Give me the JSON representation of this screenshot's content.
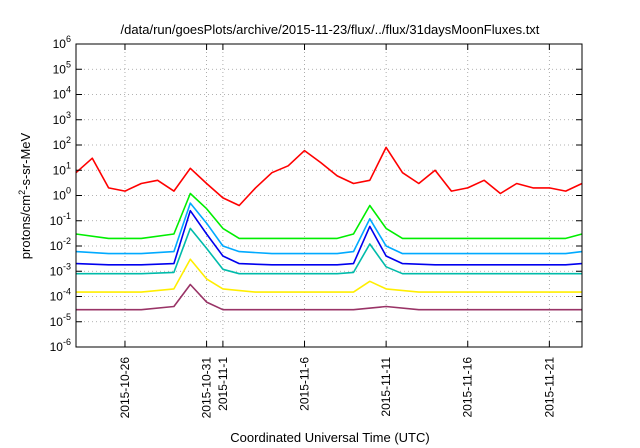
{
  "chart_data": {
    "type": "line",
    "title": "/data/run/goesPlots/archive/2015-11-23/flux/../flux/31daysMoonFluxes.txt",
    "xlabel": "Coordinated Universal Time (UTC)",
    "ylabel": "protons/cm2-s-sr-MeV",
    "yscale": "log",
    "ylim": [
      1e-06,
      1000000.0
    ],
    "xlim": [
      "2015-10-23",
      "2015-11-23"
    ],
    "grid": true,
    "legend": "none",
    "yticks": [
      {
        "value": 1e-06,
        "base": "10",
        "exp": "-6"
      },
      {
        "value": 1e-05,
        "base": "10",
        "exp": "-5"
      },
      {
        "value": 0.0001,
        "base": "10",
        "exp": "-4"
      },
      {
        "value": 0.001,
        "base": "10",
        "exp": "-3"
      },
      {
        "value": 0.01,
        "base": "10",
        "exp": "-2"
      },
      {
        "value": 0.1,
        "base": "10",
        "exp": "-1"
      },
      {
        "value": 1.0,
        "base": "10",
        "exp": "0"
      },
      {
        "value": 10.0,
        "base": "10",
        "exp": "1"
      },
      {
        "value": 100.0,
        "base": "10",
        "exp": "2"
      },
      {
        "value": 1000.0,
        "base": "10",
        "exp": "3"
      },
      {
        "value": 10000.0,
        "base": "10",
        "exp": "4"
      },
      {
        "value": 100000.0,
        "base": "10",
        "exp": "5"
      },
      {
        "value": 1000000.0,
        "base": "10",
        "exp": "6"
      }
    ],
    "xticks": [
      {
        "date": "2015-10-26",
        "label": "2015-10-26"
      },
      {
        "date": "2015-10-31",
        "label": "2015-10-31"
      },
      {
        "date": "2015-11-01",
        "label": "2015-11-1"
      },
      {
        "date": "2015-11-06",
        "label": "2015-11-6"
      },
      {
        "date": "2015-11-11",
        "label": "2015-11-11"
      },
      {
        "date": "2015-11-16",
        "label": "2015-11-16"
      },
      {
        "date": "2015-11-21",
        "label": "2015-11-21"
      }
    ],
    "series": [
      {
        "color": "#ff0000",
        "x": [
          "2015-10-23",
          "2015-10-24",
          "2015-10-25",
          "2015-10-26",
          "2015-10-27",
          "2015-10-28",
          "2015-10-29",
          "2015-10-30",
          "2015-10-31",
          "2015-11-01",
          "2015-11-02",
          "2015-11-03",
          "2015-11-04",
          "2015-11-05",
          "2015-11-06",
          "2015-11-07",
          "2015-11-08",
          "2015-11-09",
          "2015-11-10",
          "2015-11-11",
          "2015-11-12",
          "2015-11-13",
          "2015-11-14",
          "2015-11-15",
          "2015-11-16",
          "2015-11-17",
          "2015-11-18",
          "2015-11-19",
          "2015-11-20",
          "2015-11-21",
          "2015-11-22",
          "2015-11-23"
        ],
        "y": [
          8,
          30,
          2,
          1.5,
          3,
          4,
          1.5,
          12,
          3,
          0.8,
          0.4,
          2,
          8,
          15,
          60,
          20,
          6,
          3,
          4,
          80,
          8,
          3,
          10,
          1.5,
          2,
          4,
          1.2,
          3,
          2,
          2,
          1.5,
          3
        ]
      },
      {
        "color": "#00ee00",
        "x": [
          "2015-10-23",
          "2015-10-25",
          "2015-10-27",
          "2015-10-29",
          "2015-10-30",
          "2015-10-31",
          "2015-11-01",
          "2015-11-02",
          "2015-11-04",
          "2015-11-06",
          "2015-11-08",
          "2015-11-09",
          "2015-11-10",
          "2015-11-11",
          "2015-11-12",
          "2015-11-14",
          "2015-11-16",
          "2015-11-18",
          "2015-11-20",
          "2015-11-22",
          "2015-11-23"
        ],
        "y": [
          0.03,
          0.02,
          0.02,
          0.03,
          1.2,
          0.3,
          0.05,
          0.02,
          0.02,
          0.02,
          0.02,
          0.03,
          0.4,
          0.05,
          0.02,
          0.02,
          0.02,
          0.02,
          0.02,
          0.02,
          0.03
        ]
      },
      {
        "color": "#00aaff",
        "x": [
          "2015-10-23",
          "2015-10-25",
          "2015-10-27",
          "2015-10-29",
          "2015-10-30",
          "2015-10-31",
          "2015-11-01",
          "2015-11-02",
          "2015-11-04",
          "2015-11-06",
          "2015-11-08",
          "2015-11-09",
          "2015-11-10",
          "2015-11-11",
          "2015-11-12",
          "2015-11-14",
          "2015-11-16",
          "2015-11-18",
          "2015-11-20",
          "2015-11-22",
          "2015-11-23"
        ],
        "y": [
          0.006,
          0.005,
          0.005,
          0.006,
          0.5,
          0.08,
          0.01,
          0.006,
          0.005,
          0.005,
          0.005,
          0.006,
          0.12,
          0.01,
          0.005,
          0.005,
          0.005,
          0.005,
          0.005,
          0.005,
          0.006
        ]
      },
      {
        "color": "#0000ee",
        "x": [
          "2015-10-23",
          "2015-10-25",
          "2015-10-27",
          "2015-10-29",
          "2015-10-30",
          "2015-10-31",
          "2015-11-01",
          "2015-11-02",
          "2015-11-04",
          "2015-11-06",
          "2015-11-08",
          "2015-11-09",
          "2015-11-10",
          "2015-11-11",
          "2015-11-12",
          "2015-11-14",
          "2015-11-16",
          "2015-11-18",
          "2015-11-20",
          "2015-11-22",
          "2015-11-23"
        ],
        "y": [
          0.002,
          0.0018,
          0.0018,
          0.002,
          0.25,
          0.03,
          0.004,
          0.002,
          0.0018,
          0.0018,
          0.0018,
          0.002,
          0.06,
          0.004,
          0.002,
          0.0018,
          0.0018,
          0.0018,
          0.0018,
          0.0018,
          0.002
        ]
      },
      {
        "color": "#00bbaa",
        "x": [
          "2015-10-23",
          "2015-10-25",
          "2015-10-27",
          "2015-10-29",
          "2015-10-30",
          "2015-10-31",
          "2015-11-01",
          "2015-11-02",
          "2015-11-04",
          "2015-11-06",
          "2015-11-08",
          "2015-11-09",
          "2015-11-10",
          "2015-11-11",
          "2015-11-12",
          "2015-11-14",
          "2015-11-16",
          "2015-11-18",
          "2015-11-20",
          "2015-11-22",
          "2015-11-23"
        ],
        "y": [
          0.0008,
          0.0008,
          0.0008,
          0.0009,
          0.05,
          0.008,
          0.0012,
          0.0008,
          0.0008,
          0.0008,
          0.0008,
          0.0009,
          0.012,
          0.0015,
          0.0008,
          0.0008,
          0.0008,
          0.0008,
          0.0008,
          0.0008,
          0.0008
        ]
      },
      {
        "color": "#ffee00",
        "x": [
          "2015-10-23",
          "2015-10-25",
          "2015-10-27",
          "2015-10-29",
          "2015-10-30",
          "2015-10-31",
          "2015-11-01",
          "2015-11-03",
          "2015-11-05",
          "2015-11-07",
          "2015-11-09",
          "2015-11-10",
          "2015-11-11",
          "2015-11-13",
          "2015-11-15",
          "2015-11-17",
          "2015-11-19",
          "2015-11-21",
          "2015-11-23"
        ],
        "y": [
          0.00015,
          0.00015,
          0.00015,
          0.0002,
          0.003,
          0.0005,
          0.0002,
          0.00015,
          0.00015,
          0.00015,
          0.00015,
          0.0004,
          0.0002,
          0.00015,
          0.00015,
          0.00015,
          0.00015,
          0.00015,
          0.00015
        ]
      },
      {
        "color": "#993366",
        "x": [
          "2015-10-23",
          "2015-10-25",
          "2015-10-27",
          "2015-10-29",
          "2015-10-30",
          "2015-10-31",
          "2015-11-01",
          "2015-11-03",
          "2015-11-05",
          "2015-11-07",
          "2015-11-09",
          "2015-11-11",
          "2015-11-13",
          "2015-11-15",
          "2015-11-17",
          "2015-11-19",
          "2015-11-21",
          "2015-11-23"
        ],
        "y": [
          3e-05,
          3e-05,
          3e-05,
          4e-05,
          0.0003,
          6e-05,
          3e-05,
          3e-05,
          3e-05,
          3e-05,
          3e-05,
          4e-05,
          3e-05,
          3e-05,
          3e-05,
          3e-05,
          3e-05,
          3e-05
        ]
      }
    ]
  }
}
